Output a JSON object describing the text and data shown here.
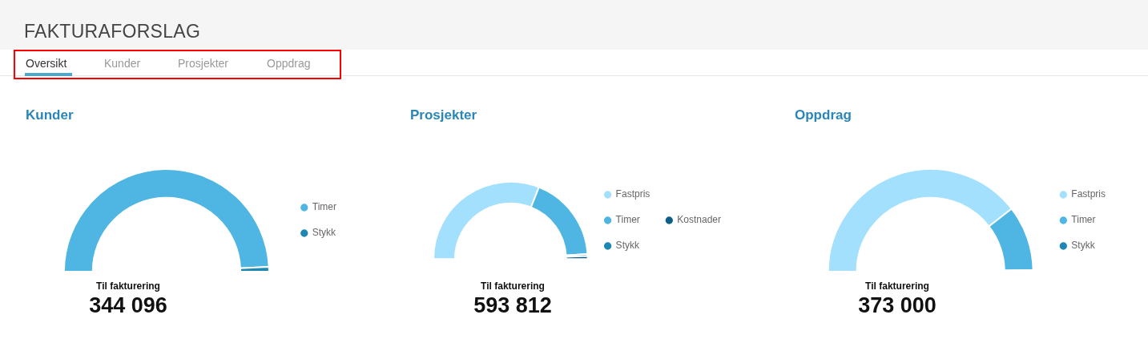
{
  "chart_data": [
    {
      "type": "other",
      "title": "FAKTURAFORSLAG",
      "categories": [
        "Oversikt",
        "Kunder",
        "Prosjekter",
        "Oppdrag"
      ]
    },
    {
      "type": "donut",
      "title": "Kunder",
      "categories": [
        "Timer",
        "Stykk"
      ],
      "values": [
        98.5,
        1.5
      ],
      "colors": [
        "#4fb5e3",
        "#1e87b4"
      ],
      "legend": "right",
      "annotations": [
        "Til fakturering",
        "344 096"
      ]
    },
    {
      "type": "donut",
      "title": "Prosjekter",
      "categories": [
        "Fastpris",
        "Timer",
        "Stykk",
        "Kostnader"
      ],
      "values": [
        62,
        36,
        0.8,
        1.2
      ],
      "colors": [
        "#a2e0fd",
        "#4fb5e3",
        "#1e87b4",
        "#0d5f8a"
      ],
      "legend": "right",
      "annotations": [
        "Til fakturering",
        "593 812"
      ]
    },
    {
      "type": "donut",
      "title": "Oppdrag",
      "categories": [
        "Fastpris",
        "Timer",
        "Stykk"
      ],
      "values": [
        79,
        20.5,
        0.5
      ],
      "colors": [
        "#a2e0fd",
        "#4fb5e3",
        "#1e87b4"
      ],
      "legend": "right",
      "annotations": [
        "Til fakturering",
        "373 000"
      ]
    }
  ]
}
